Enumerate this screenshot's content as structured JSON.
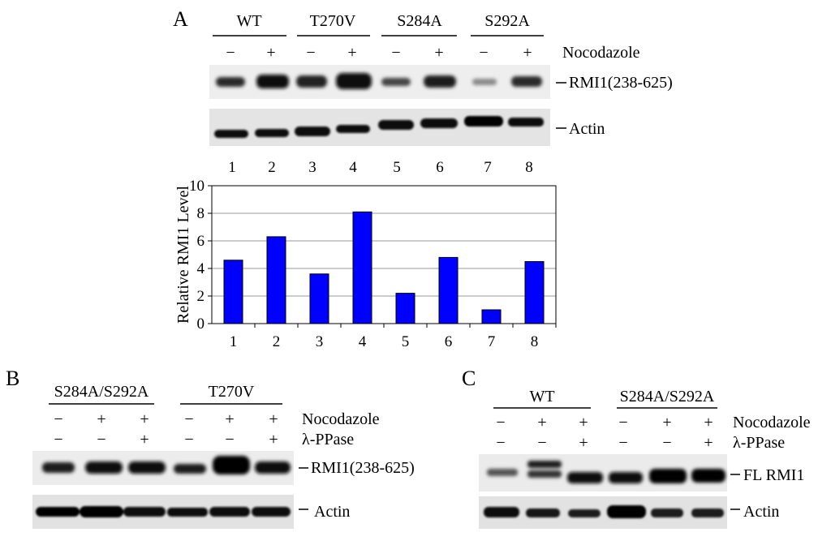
{
  "panel_a": {
    "letter": "A",
    "groups": [
      "WT",
      "T270V",
      "S284A",
      "S292A"
    ],
    "treatment_row": {
      "label": "Nocodazole",
      "signs": [
        "−",
        "+",
        "−",
        "+",
        "−",
        "+",
        "−",
        "+"
      ]
    },
    "blot_labels": [
      "RMI1(238-625)",
      "Actin"
    ],
    "lane_numbers": [
      "1",
      "2",
      "3",
      "4",
      "5",
      "6",
      "7",
      "8"
    ]
  },
  "panel_b": {
    "letter": "B",
    "groups": [
      "S284A/S292A",
      "T270V"
    ],
    "rows": [
      {
        "label": "Nocodazole",
        "signs": [
          "−",
          "+",
          "+",
          "−",
          "+",
          "+"
        ]
      },
      {
        "label": "λ-PPase",
        "signs": [
          "−",
          "−",
          "+",
          "−",
          "−",
          "+"
        ]
      }
    ],
    "blot_labels": [
      "RMI1(238-625)",
      "Actin"
    ]
  },
  "panel_c": {
    "letter": "C",
    "groups": [
      "WT",
      "S284A/S292A"
    ],
    "rows": [
      {
        "label": "Nocodazole",
        "signs": [
          "−",
          "+",
          "+",
          "−",
          "+",
          "+"
        ]
      },
      {
        "label": "λ-PPase",
        "signs": [
          "−",
          "−",
          "+",
          "−",
          "−",
          "+"
        ]
      }
    ],
    "blot_labels": [
      "FL RMI1",
      "Actin"
    ]
  },
  "chart_data": {
    "type": "bar",
    "categories": [
      "1",
      "2",
      "3",
      "4",
      "5",
      "6",
      "7",
      "8"
    ],
    "values": [
      4.6,
      6.3,
      3.6,
      8.1,
      2.2,
      4.8,
      1.0,
      4.5
    ],
    "ylabel": "Relative RMI1 Level",
    "xlabel": "",
    "ylim": [
      0,
      10
    ],
    "yticks": [
      "0",
      "2",
      "4",
      "6",
      "8",
      "10"
    ],
    "grid": true,
    "bar_color": "#0000ff",
    "bar_edge_color": "#000000"
  }
}
